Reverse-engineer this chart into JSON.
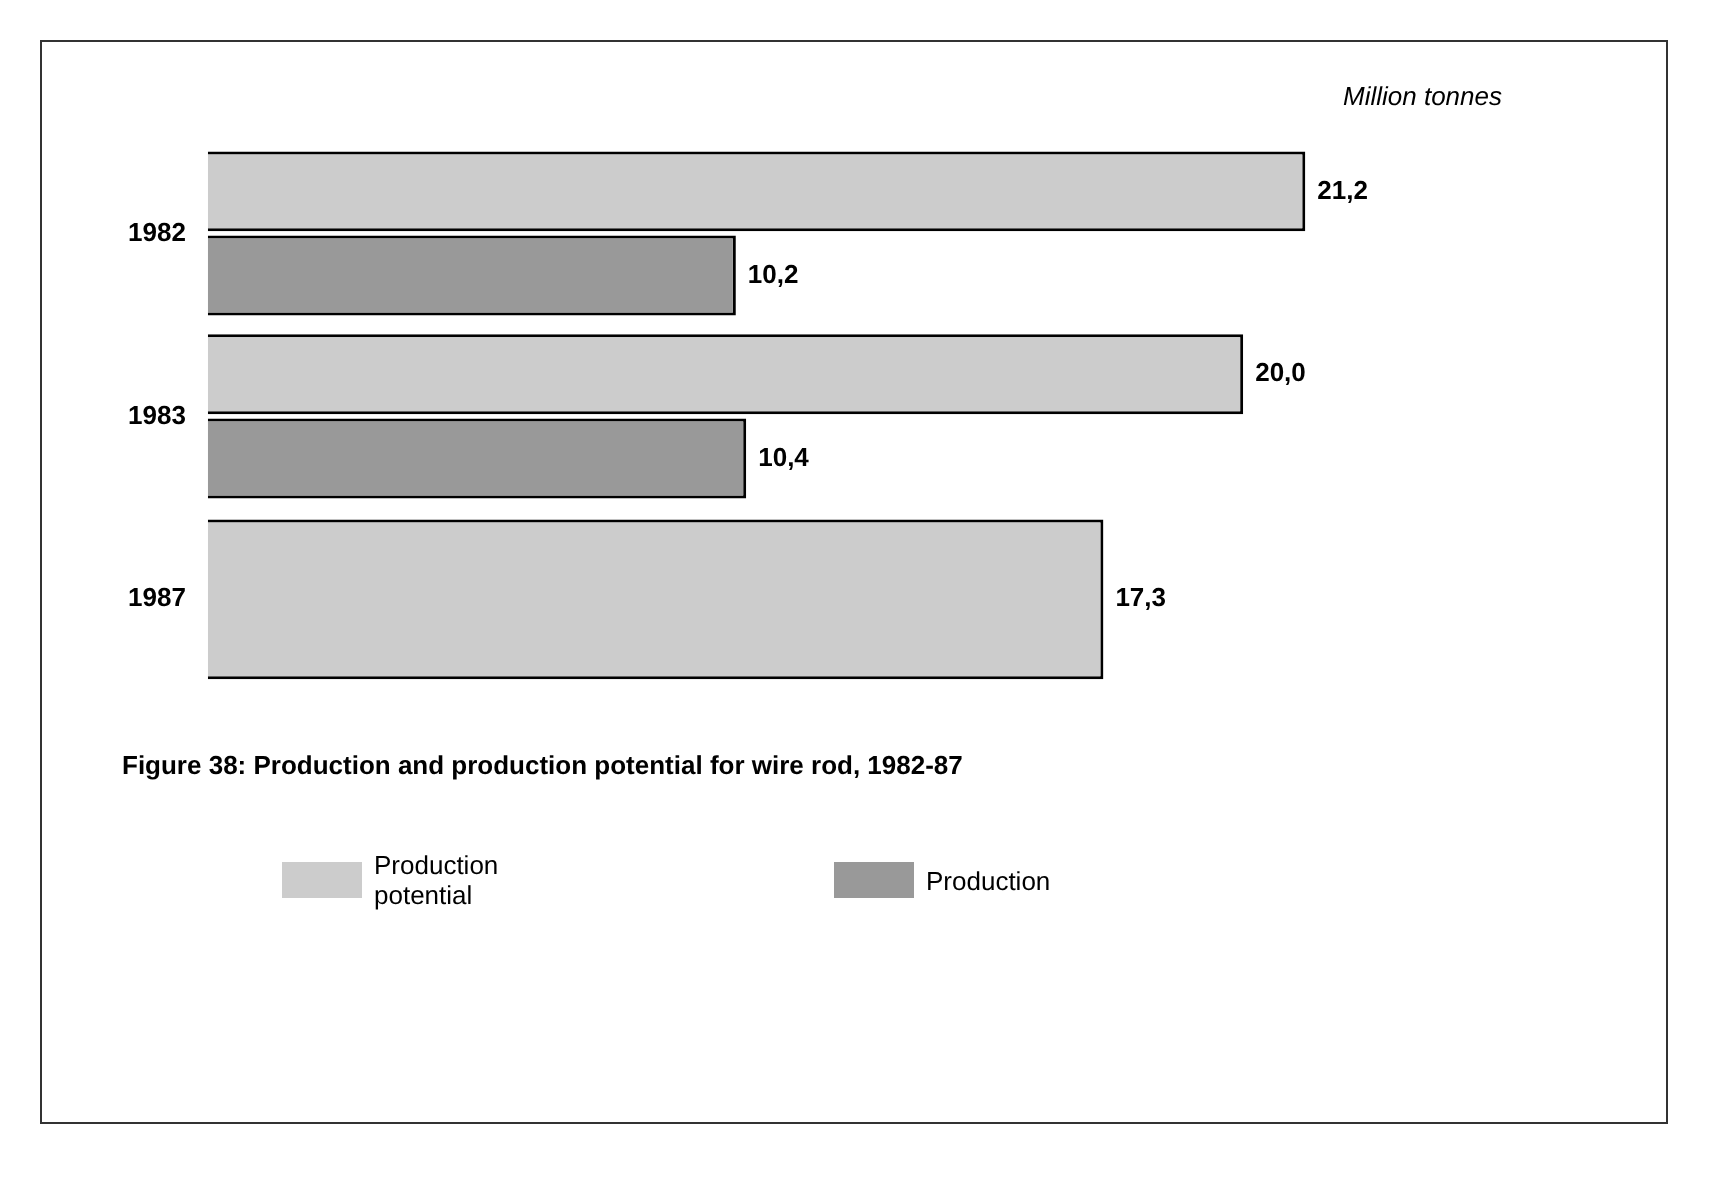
{
  "chart_data": {
    "type": "bar",
    "orientation": "horizontal",
    "title": "Figure 38: Production and production potential for wire rod, 1982-87",
    "annotations": [
      "Million tonnes"
    ],
    "categories": [
      "1982",
      "1983",
      "1987"
    ],
    "series": [
      {
        "name": "Production potential",
        "color": "#cccccc",
        "values": [
          21.2,
          20.0,
          17.3
        ],
        "value_labels": [
          "21,2",
          "20,0",
          "17,3"
        ]
      },
      {
        "name": "Production",
        "color": "#999999",
        "values": [
          10.2,
          10.4,
          null
        ],
        "value_labels": [
          "10,2",
          "10,4",
          null
        ]
      }
    ],
    "tick_labels": "y",
    "legend": "bottom",
    "grid": false
  }
}
